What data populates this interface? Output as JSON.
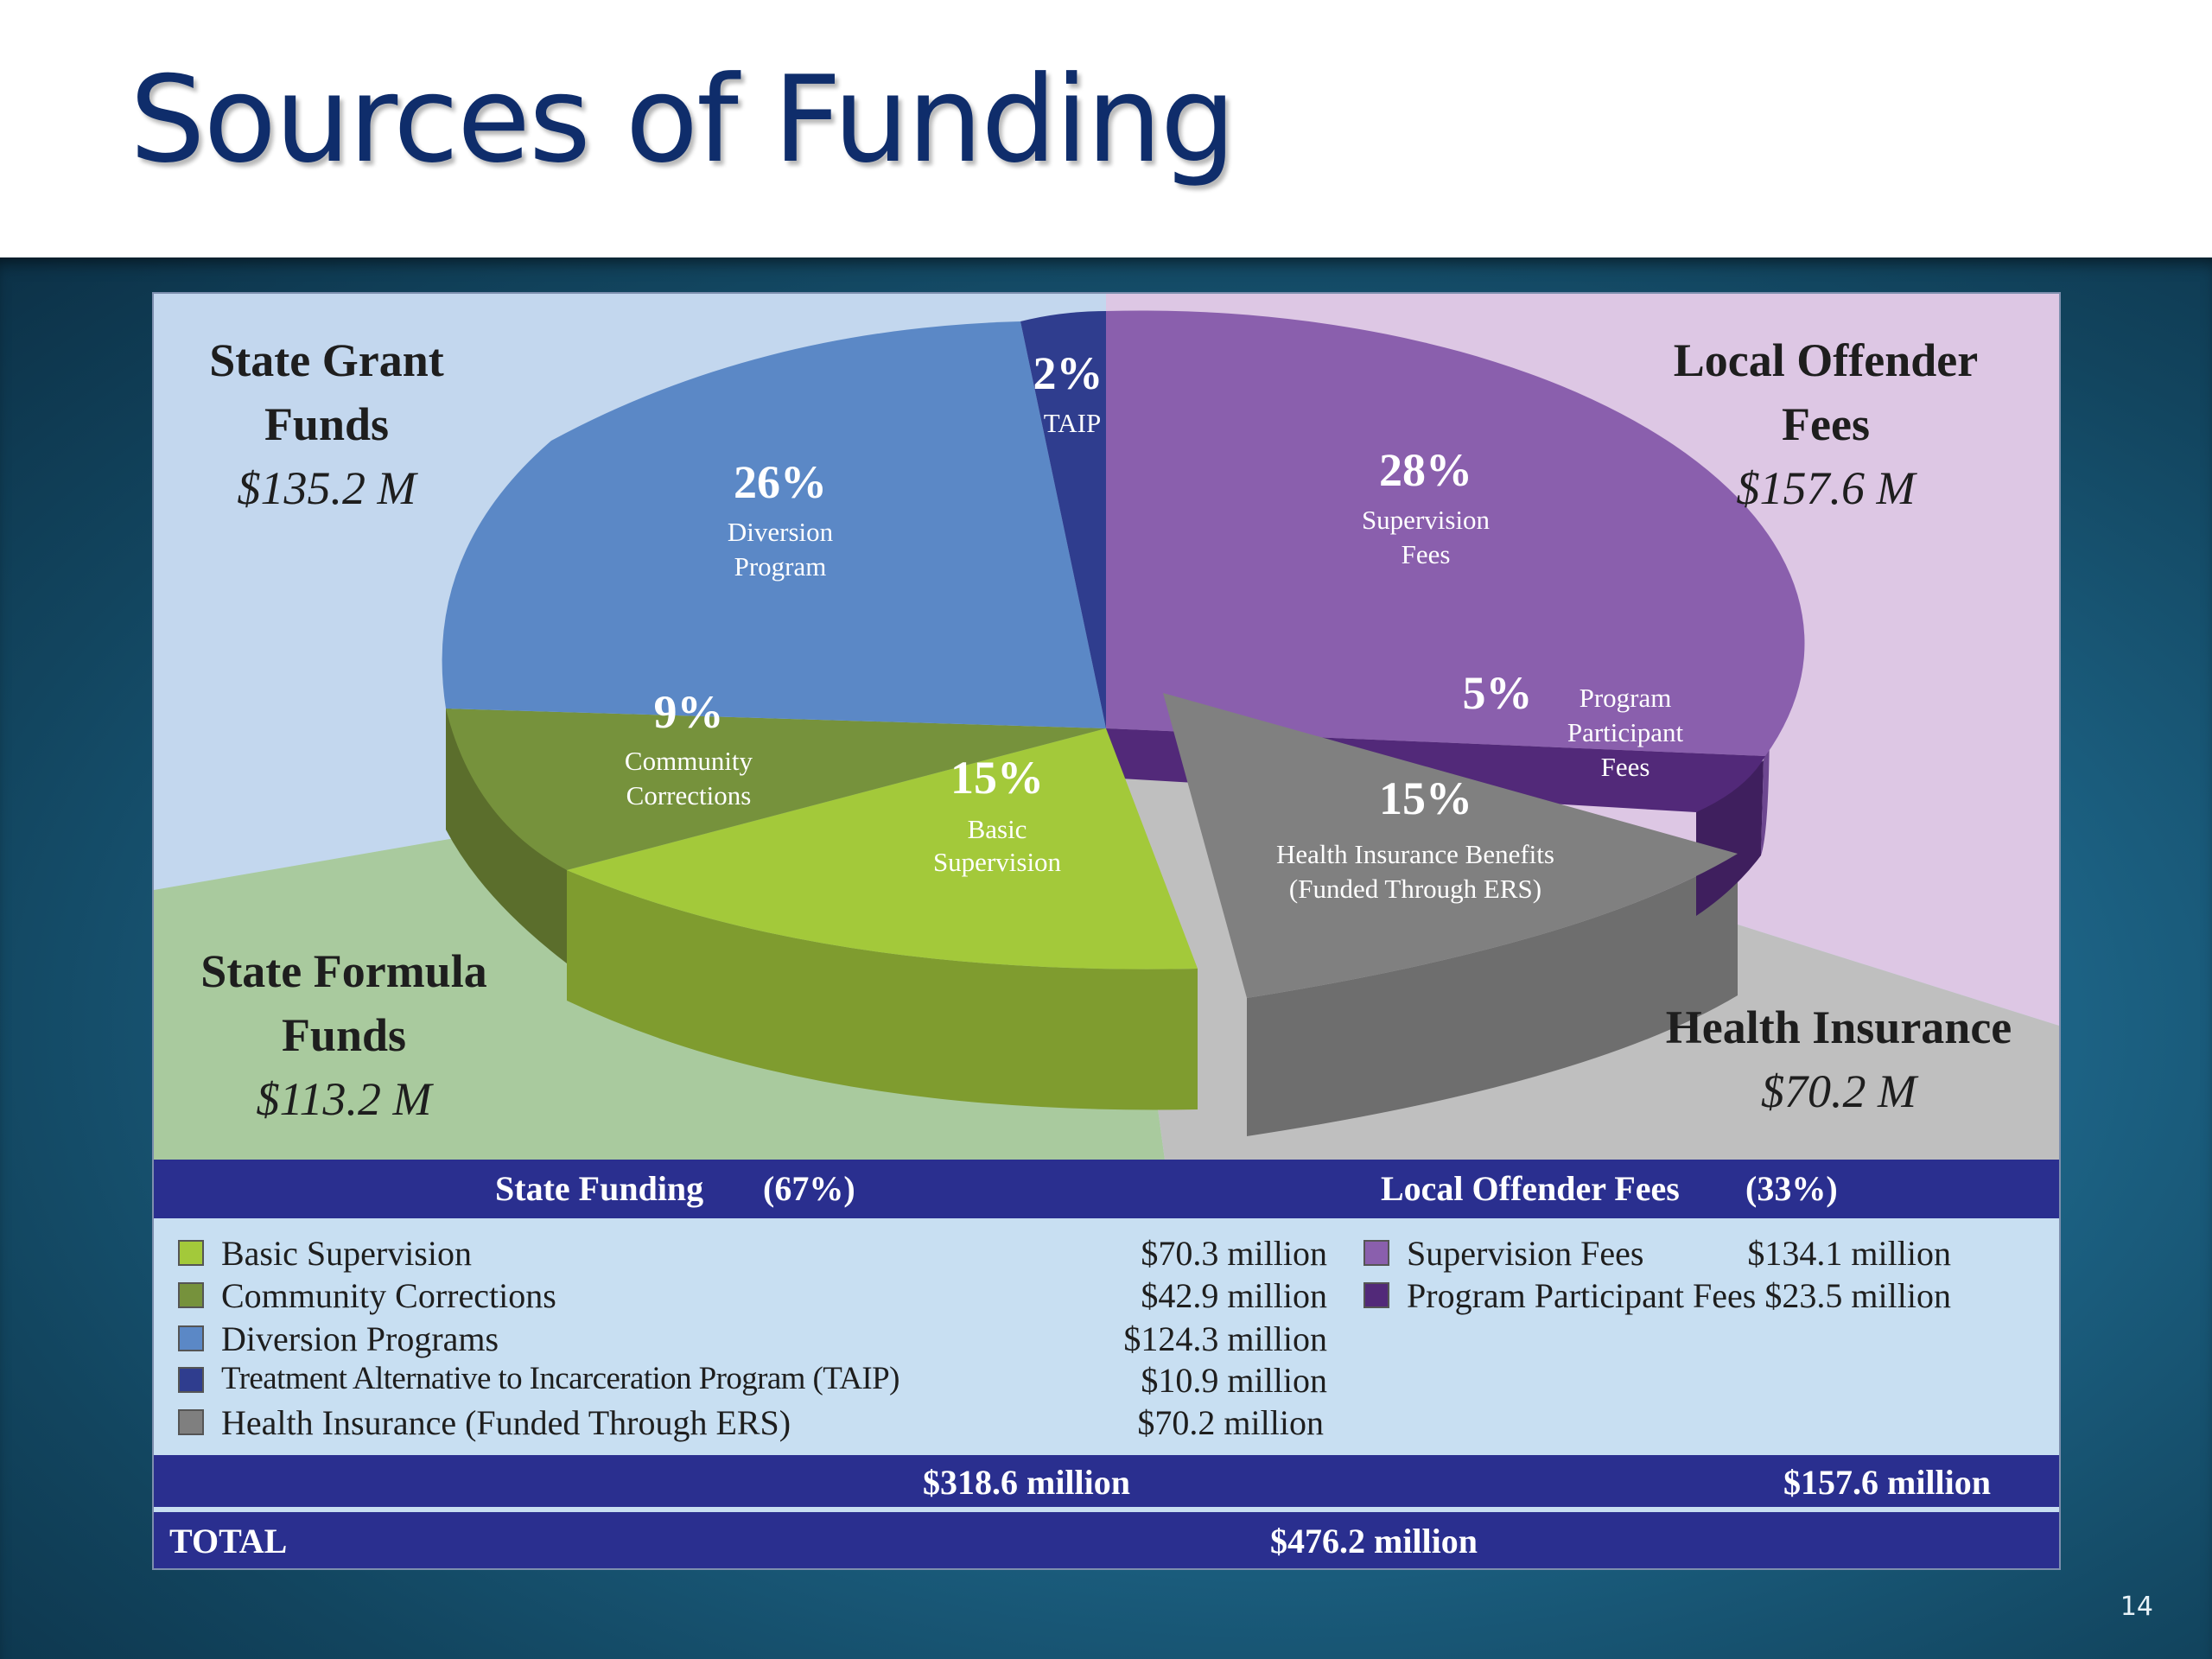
{
  "slide": {
    "title": "Sources of Funding",
    "page_number": "14"
  },
  "quadrants": {
    "state_grant": {
      "line1": "State Grant",
      "line2": "Funds",
      "value": "$135.2 M"
    },
    "local_offender": {
      "line1": "Local Offender",
      "line2": "Fees",
      "value": "$157.6 M"
    },
    "state_formula": {
      "line1": "State Formula",
      "line2": "Funds",
      "value": "$113.2 M"
    },
    "health_insurance": {
      "line1": "Health Insurance",
      "value": "$70.2 M"
    }
  },
  "chart_data": {
    "type": "pie",
    "slices": [
      {
        "pct": "28%",
        "label1": "Supervision",
        "label2": "Fees",
        "value": 28,
        "color": "#8a5fad"
      },
      {
        "pct": "5%",
        "label1": "Program",
        "label2": "Participant",
        "label3": "Fees",
        "value": 5,
        "color": "#522979"
      },
      {
        "pct": "15%",
        "label1": "Health Insurance Benefits",
        "label2": "(Funded Through ERS)",
        "value": 15,
        "color": "#7f7f7f"
      },
      {
        "pct": "15%",
        "label1": "Basic",
        "label2": "Supervision",
        "value": 15,
        "color": "#a3c93a"
      },
      {
        "pct": "9%",
        "label1": "Community",
        "label2": "Corrections",
        "value": 9,
        "color": "#76923c"
      },
      {
        "pct": "26%",
        "label1": "Diversion",
        "label2": "Program",
        "value": 26,
        "color": "#5b88c6"
      },
      {
        "pct": "2%",
        "label1": "TAIP",
        "value": 2,
        "color": "#2f3d8e"
      }
    ]
  },
  "table": {
    "state_header": "State Funding",
    "state_pct": "(67%)",
    "local_header": "Local Offender Fees",
    "local_pct": "(33%)",
    "state_rows": [
      {
        "label": "Basic Supervision",
        "amount": "$70.3 million",
        "color": "#a3c93a"
      },
      {
        "label": "Community Corrections",
        "amount": "$42.9 million",
        "color": "#76923c"
      },
      {
        "label": "Diversion Programs",
        "amount": "$124.3 million",
        "color": "#5b88c6"
      },
      {
        "label": "Treatment Alternative to Incarceration Program (TAIP)",
        "amount": "$10.9 million",
        "color": "#2f3d8e"
      },
      {
        "label": "Health Insurance (Funded Through ERS)",
        "amount": "$70.2 million",
        "color": "#7f7f7f"
      }
    ],
    "local_rows": [
      {
        "label": "Supervision Fees",
        "amount": "$134.1 million",
        "color": "#8a5fad"
      },
      {
        "label": "Program Participant Fees",
        "amount": "$23.5 million",
        "color": "#522979"
      }
    ],
    "state_subtotal": "$318.6 million",
    "local_subtotal": "$157.6 million",
    "total_label": "TOTAL",
    "total_value": "$476.2 million"
  }
}
